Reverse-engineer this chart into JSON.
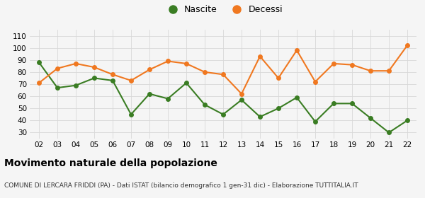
{
  "years": [
    "02",
    "03",
    "04",
    "05",
    "06",
    "07",
    "08",
    "09",
    "10",
    "11",
    "12",
    "13",
    "14",
    "15",
    "16",
    "17",
    "18",
    "19",
    "20",
    "21",
    "22"
  ],
  "nascite": [
    88,
    67,
    69,
    75,
    73,
    45,
    62,
    58,
    71,
    53,
    45,
    57,
    43,
    50,
    59,
    39,
    54,
    54,
    42,
    30,
    40
  ],
  "decessi": [
    71,
    83,
    87,
    84,
    78,
    73,
    82,
    89,
    87,
    80,
    78,
    62,
    93,
    75,
    98,
    72,
    87,
    86,
    81,
    81,
    102
  ],
  "nascite_color": "#3a7d23",
  "decessi_color": "#f07820",
  "bg_color": "#f5f5f5",
  "grid_color": "#d8d8d8",
  "title": "Movimento naturale della popolazione",
  "subtitle": "COMUNE DI LERCARA FRIDDI (PA) - Dati ISTAT (bilancio demografico 1 gen-31 dic) - Elaborazione TUTTITALIA.IT",
  "ylim_min": 25,
  "ylim_max": 115,
  "yticks": [
    30,
    40,
    50,
    60,
    70,
    80,
    90,
    100,
    110
  ],
  "legend_nascite": "Nascite",
  "legend_decessi": "Decessi",
  "title_fontsize": 10,
  "subtitle_fontsize": 6.5,
  "marker_size": 4,
  "line_width": 1.5
}
